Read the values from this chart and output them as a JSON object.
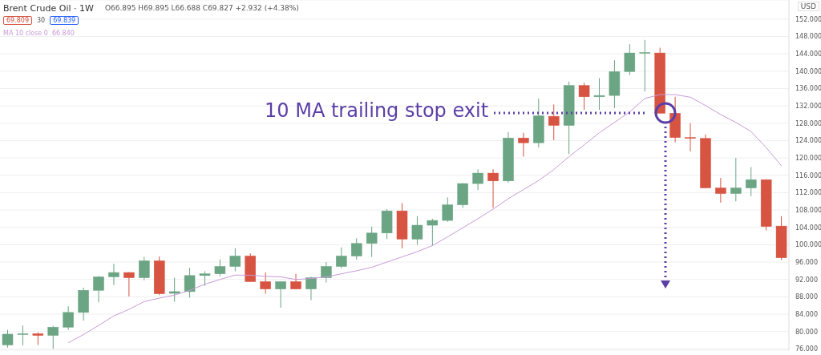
{
  "chart_data": {
    "type": "candlestick",
    "title": "Brent Crude Oil · 1W",
    "subtitle": "O66.895 H69.895 L66.688 C69.827 +2.932 (+4.38%)",
    "ylabel": "USD",
    "annotations": [
      "69.809",
      "30",
      "69.839",
      "66.840",
      "10 MA trailing stop exit"
    ],
    "categories": [
      null,
      null,
      null,
      null,
      null,
      null,
      null,
      null,
      null,
      null,
      null,
      null,
      null,
      null,
      null,
      null,
      null,
      null,
      null,
      null,
      null,
      null,
      null,
      null,
      null,
      null,
      null,
      null,
      null,
      null,
      null,
      null,
      null,
      null,
      null,
      null,
      null,
      null,
      null,
      null,
      null,
      null,
      null,
      null,
      null,
      null,
      null,
      null,
      null,
      null,
      null,
      null
    ],
    "ohlc": [
      [
        76.9,
        80.4,
        76.3,
        79.4
      ],
      [
        79.4,
        81.4,
        76.8,
        79.5
      ],
      [
        79.5,
        79.8,
        76.9,
        79.1
      ],
      [
        79.1,
        81.3,
        76.0,
        81.0
      ],
      [
        81.0,
        85.8,
        80.4,
        84.4
      ],
      [
        84.4,
        90.1,
        82.5,
        89.5
      ],
      [
        89.5,
        92.8,
        86.7,
        92.6
      ],
      [
        92.6,
        95.6,
        90.7,
        93.6
      ],
      [
        93.6,
        93.7,
        88.1,
        92.4
      ],
      [
        92.4,
        97.2,
        91.8,
        96.3
      ],
      [
        96.3,
        97.3,
        88.4,
        88.7
      ],
      [
        88.8,
        92.4,
        86.9,
        89.2
      ],
      [
        89.2,
        94.7,
        87.8,
        92.9
      ],
      [
        92.9,
        93.9,
        90.5,
        93.3
      ],
      [
        93.3,
        96.6,
        92.7,
        95.0
      ],
      [
        95.0,
        99.2,
        93.9,
        97.4
      ],
      [
        97.4,
        98.0,
        91.5,
        91.5
      ],
      [
        91.5,
        93.6,
        88.7,
        89.8
      ],
      [
        89.8,
        91.5,
        85.5,
        91.5
      ],
      [
        91.5,
        93.3,
        89.8,
        89.8
      ],
      [
        89.8,
        92.6,
        87.2,
        92.4
      ],
      [
        92.4,
        96.0,
        91.3,
        95.0
      ],
      [
        95.0,
        99.4,
        94.6,
        97.4
      ],
      [
        97.4,
        101.5,
        96.6,
        100.3
      ],
      [
        100.3,
        104.2,
        97.2,
        102.7
      ],
      [
        102.7,
        108.2,
        101.3,
        107.8
      ],
      [
        107.8,
        109.6,
        99.2,
        101.3
      ],
      [
        101.3,
        106.6,
        100.0,
        104.5
      ],
      [
        104.5,
        106.0,
        99.8,
        105.6
      ],
      [
        105.6,
        110.9,
        105.3,
        109.2
      ],
      [
        109.2,
        114.2,
        108.5,
        114.1
      ],
      [
        114.1,
        117.4,
        112.6,
        116.5
      ],
      [
        116.5,
        117.4,
        108.5,
        114.7
      ],
      [
        114.7,
        126.0,
        114.3,
        124.6
      ],
      [
        124.6,
        125.8,
        120.3,
        123.5
      ],
      [
        123.5,
        133.7,
        122.4,
        129.7
      ],
      [
        129.6,
        132.3,
        124.1,
        127.5
      ],
      [
        127.5,
        137.6,
        120.9,
        136.7
      ],
      [
        136.7,
        137.3,
        131.1,
        134.1
      ],
      [
        134.1,
        138.4,
        131.1,
        134.4
      ],
      [
        134.4,
        142.5,
        131.5,
        139.9
      ],
      [
        139.9,
        146.2,
        139.1,
        144.2
      ],
      [
        144.2,
        147.2,
        135.3,
        144.3
      ],
      [
        144.2,
        145.4,
        130.3,
        130.3
      ],
      [
        130.3,
        134.1,
        123.6,
        124.7
      ],
      [
        124.7,
        128.0,
        121.5,
        124.5
      ],
      [
        124.5,
        125.4,
        113.1,
        113.1
      ],
      [
        113.1,
        115.4,
        109.7,
        111.8
      ],
      [
        111.8,
        120.0,
        110.0,
        113.1
      ],
      [
        113.1,
        117.9,
        111.2,
        115.0
      ],
      [
        115.0,
        115.1,
        103.3,
        104.2
      ],
      [
        104.3,
        106.6,
        96.5,
        97.0
      ]
    ],
    "colors": [
      "#6ba583",
      "#6ba583",
      "#d75442",
      "#6ba583",
      "#6ba583",
      "#6ba583",
      "#6ba583",
      "#6ba583",
      "#d75442",
      "#6ba583",
      "#d75442",
      "#6ba583",
      "#6ba583",
      "#6ba583",
      "#6ba583",
      "#6ba583",
      "#d75442",
      "#d75442",
      "#6ba583",
      "#d75442",
      "#6ba583",
      "#6ba583",
      "#6ba583",
      "#6ba583",
      "#6ba583",
      "#6ba583",
      "#d75442",
      "#6ba583",
      "#6ba583",
      "#6ba583",
      "#6ba583",
      "#6ba583",
      "#d75442",
      "#6ba583",
      "#d75442",
      "#6ba583",
      "#d75442",
      "#6ba583",
      "#d75442",
      "#6ba583",
      "#6ba583",
      "#6ba583",
      "#6ba583",
      "#d75442",
      "#d75442",
      "#d75442",
      "#d75442",
      "#d75442",
      "#6ba583",
      "#6ba583",
      "#d75442",
      "#d75442"
    ],
    "series": [
      {
        "name": "MA 10 close 0",
        "type": "line",
        "color": "#c99ad8",
        "values": [
          null,
          null,
          null,
          null,
          77.4,
          79.3,
          81.4,
          83.6,
          85.1,
          86.9,
          87.7,
          88.4,
          89.5,
          90.9,
          92.0,
          93.0,
          93.0,
          92.7,
          92.6,
          92.0,
          92.2,
          92.6,
          93.3,
          94.0,
          94.8,
          96.0,
          97.2,
          98.4,
          99.8,
          101.8,
          103.9,
          106.0,
          108.2,
          110.6,
          112.7,
          114.8,
          117.3,
          120.3,
          123.0,
          125.8,
          128.2,
          130.6,
          133.7,
          134.6,
          134.6,
          134.0,
          132.1,
          130.0,
          128.2,
          126.1,
          122.4,
          118.2
        ]
      }
    ],
    "ylim": [
      75.7,
      156.4
    ],
    "yticks": [
      {
        "value": 76,
        "label": "76.000"
      },
      {
        "value": 80,
        "label": "80.000"
      },
      {
        "value": 84,
        "label": "84.000"
      },
      {
        "value": 88,
        "label": "88.000"
      },
      {
        "value": 92,
        "label": "92.000"
      },
      {
        "value": 96,
        "label": "96.000"
      },
      {
        "value": 100,
        "label": "100.000"
      },
      {
        "value": 104,
        "label": "104.000"
      },
      {
        "value": 108,
        "label": "108.000"
      },
      {
        "value": 112,
        "label": "112.000"
      },
      {
        "value": 116,
        "label": "116.000"
      },
      {
        "value": 120,
        "label": "120.000"
      },
      {
        "value": 124,
        "label": "124.000"
      },
      {
        "value": 128,
        "label": "128.000"
      },
      {
        "value": 132,
        "label": "132.000"
      },
      {
        "value": 136,
        "label": "136.000"
      },
      {
        "value": 140,
        "label": "140.000"
      },
      {
        "value": 144,
        "label": "144.000"
      },
      {
        "value": 148,
        "label": "148.000"
      },
      {
        "value": 152,
        "label": "152.000"
      }
    ],
    "grid": "y",
    "legend": "top left"
  }
}
